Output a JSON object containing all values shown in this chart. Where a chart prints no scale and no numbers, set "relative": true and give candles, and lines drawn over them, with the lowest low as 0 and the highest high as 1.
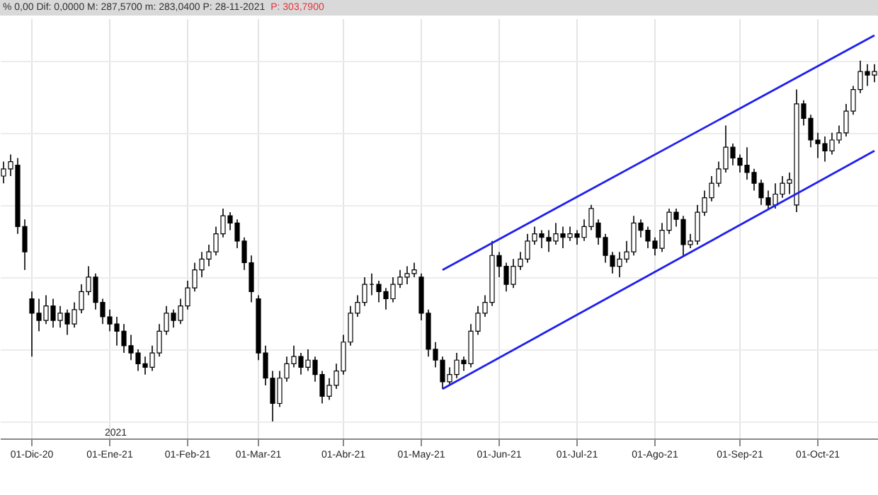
{
  "chart_data": {
    "type": "candlestick",
    "relative": true,
    "grid": true,
    "annotations": [
      "% 0,00 Dif: 0,0000 M: 287,5700 m: 283,0400 P: 28-11-2021",
      "P: 303,7900",
      "2021"
    ],
    "categories": [
      null,
      null,
      null,
      null,
      "01-Dic-20",
      null,
      null,
      null,
      null,
      null,
      null,
      null,
      null,
      null,
      null,
      "01-Ene-21",
      null,
      null,
      null,
      null,
      null,
      null,
      null,
      null,
      null,
      null,
      "01-Feb-21",
      null,
      null,
      null,
      null,
      null,
      null,
      null,
      null,
      null,
      "01-Mar-21",
      null,
      null,
      null,
      null,
      null,
      null,
      null,
      null,
      null,
      null,
      null,
      "01-Abr-21",
      null,
      null,
      null,
      null,
      null,
      null,
      null,
      null,
      null,
      null,
      "01-May-21",
      null,
      null,
      null,
      null,
      null,
      null,
      null,
      null,
      null,
      null,
      "01-Jun-21",
      null,
      null,
      null,
      null,
      null,
      null,
      null,
      null,
      null,
      null,
      "01-Jul-21",
      null,
      null,
      null,
      null,
      null,
      null,
      null,
      null,
      null,
      null,
      "01-Ago-21",
      null,
      null,
      null,
      null,
      null,
      null,
      null,
      null,
      null,
      null,
      null,
      "01-Sep-21",
      null,
      null,
      null,
      null,
      null,
      null,
      null,
      null,
      null,
      null,
      "01-Oct-21",
      null,
      null,
      null,
      null,
      null,
      null,
      null,
      null
    ],
    "ohlc": [
      [
        0.68,
        0.72,
        0.66,
        0.7
      ],
      [
        0.7,
        0.74,
        0.68,
        0.72
      ],
      [
        0.71,
        0.73,
        0.52,
        0.54
      ],
      [
        0.54,
        0.56,
        0.42,
        0.47
      ],
      [
        0.34,
        0.36,
        0.18,
        0.3
      ],
      [
        0.3,
        0.34,
        0.25,
        0.28
      ],
      [
        0.28,
        0.35,
        0.27,
        0.32
      ],
      [
        0.32,
        0.34,
        0.26,
        0.28
      ],
      [
        0.28,
        0.32,
        0.26,
        0.3
      ],
      [
        0.3,
        0.31,
        0.24,
        0.27
      ],
      [
        0.27,
        0.33,
        0.26,
        0.31
      ],
      [
        0.31,
        0.38,
        0.3,
        0.36
      ],
      [
        0.36,
        0.43,
        0.35,
        0.4
      ],
      [
        0.4,
        0.41,
        0.31,
        0.33
      ],
      [
        0.33,
        0.34,
        0.27,
        0.29
      ],
      [
        0.29,
        0.31,
        0.25,
        0.27
      ],
      [
        0.27,
        0.29,
        0.21,
        0.25
      ],
      [
        0.25,
        0.27,
        0.19,
        0.21
      ],
      [
        0.21,
        0.24,
        0.17,
        0.19
      ],
      [
        0.19,
        0.2,
        0.14,
        0.16
      ],
      [
        0.16,
        0.18,
        0.13,
        0.15
      ],
      [
        0.15,
        0.21,
        0.14,
        0.19
      ],
      [
        0.19,
        0.27,
        0.18,
        0.25
      ],
      [
        0.25,
        0.32,
        0.24,
        0.3
      ],
      [
        0.3,
        0.31,
        0.26,
        0.28
      ],
      [
        0.28,
        0.34,
        0.27,
        0.32
      ],
      [
        0.32,
        0.39,
        0.31,
        0.37
      ],
      [
        0.37,
        0.44,
        0.36,
        0.42
      ],
      [
        0.42,
        0.47,
        0.4,
        0.45
      ],
      [
        0.45,
        0.49,
        0.43,
        0.47
      ],
      [
        0.47,
        0.54,
        0.46,
        0.52
      ],
      [
        0.52,
        0.59,
        0.51,
        0.57
      ],
      [
        0.57,
        0.58,
        0.53,
        0.55
      ],
      [
        0.55,
        0.56,
        0.48,
        0.5
      ],
      [
        0.5,
        0.51,
        0.42,
        0.44
      ],
      [
        0.44,
        0.46,
        0.33,
        0.36
      ],
      [
        0.34,
        0.35,
        0.17,
        0.19
      ],
      [
        0.19,
        0.21,
        0.1,
        0.12
      ],
      [
        0.12,
        0.14,
        0.0,
        0.05
      ],
      [
        0.05,
        0.14,
        0.04,
        0.12
      ],
      [
        0.12,
        0.18,
        0.11,
        0.16
      ],
      [
        0.16,
        0.21,
        0.15,
        0.18
      ],
      [
        0.18,
        0.19,
        0.13,
        0.15
      ],
      [
        0.15,
        0.2,
        0.14,
        0.17
      ],
      [
        0.17,
        0.18,
        0.11,
        0.13
      ],
      [
        0.13,
        0.14,
        0.05,
        0.07
      ],
      [
        0.07,
        0.12,
        0.06,
        0.1
      ],
      [
        0.1,
        0.16,
        0.09,
        0.14
      ],
      [
        0.14,
        0.24,
        0.13,
        0.22
      ],
      [
        0.22,
        0.32,
        0.21,
        0.3
      ],
      [
        0.3,
        0.35,
        0.29,
        0.33
      ],
      [
        0.33,
        0.4,
        0.32,
        0.38
      ],
      [
        0.38,
        0.41,
        0.35,
        0.38
      ],
      [
        0.38,
        0.39,
        0.33,
        0.36
      ],
      [
        0.36,
        0.37,
        0.31,
        0.34
      ],
      [
        0.34,
        0.4,
        0.33,
        0.38
      ],
      [
        0.38,
        0.42,
        0.37,
        0.4
      ],
      [
        0.4,
        0.43,
        0.38,
        0.41
      ],
      [
        0.41,
        0.44,
        0.4,
        0.42
      ],
      [
        0.4,
        0.41,
        0.28,
        0.3
      ],
      [
        0.3,
        0.31,
        0.18,
        0.2
      ],
      [
        0.2,
        0.22,
        0.15,
        0.17
      ],
      [
        0.17,
        0.18,
        0.09,
        0.11
      ],
      [
        0.11,
        0.15,
        0.1,
        0.13
      ],
      [
        0.13,
        0.19,
        0.12,
        0.17
      ],
      [
        0.17,
        0.18,
        0.14,
        0.16
      ],
      [
        0.16,
        0.27,
        0.15,
        0.25
      ],
      [
        0.25,
        0.32,
        0.24,
        0.3
      ],
      [
        0.3,
        0.35,
        0.29,
        0.33
      ],
      [
        0.33,
        0.5,
        0.32,
        0.46
      ],
      [
        0.46,
        0.47,
        0.4,
        0.43
      ],
      [
        0.43,
        0.44,
        0.36,
        0.38
      ],
      [
        0.38,
        0.45,
        0.37,
        0.43
      ],
      [
        0.43,
        0.47,
        0.42,
        0.45
      ],
      [
        0.45,
        0.52,
        0.44,
        0.5
      ],
      [
        0.5,
        0.54,
        0.49,
        0.52
      ],
      [
        0.52,
        0.53,
        0.48,
        0.51
      ],
      [
        0.51,
        0.53,
        0.47,
        0.5
      ],
      [
        0.5,
        0.55,
        0.49,
        0.52
      ],
      [
        0.52,
        0.54,
        0.48,
        0.51
      ],
      [
        0.51,
        0.54,
        0.5,
        0.52
      ],
      [
        0.52,
        0.53,
        0.49,
        0.51
      ],
      [
        0.51,
        0.56,
        0.5,
        0.54
      ],
      [
        0.54,
        0.6,
        0.53,
        0.59
      ],
      [
        0.55,
        0.56,
        0.49,
        0.51
      ],
      [
        0.51,
        0.52,
        0.44,
        0.46
      ],
      [
        0.46,
        0.47,
        0.41,
        0.43
      ],
      [
        0.43,
        0.47,
        0.4,
        0.45
      ],
      [
        0.45,
        0.5,
        0.44,
        0.47
      ],
      [
        0.47,
        0.57,
        0.46,
        0.55
      ],
      [
        0.55,
        0.56,
        0.51,
        0.53
      ],
      [
        0.53,
        0.54,
        0.48,
        0.5
      ],
      [
        0.5,
        0.51,
        0.46,
        0.48
      ],
      [
        0.48,
        0.55,
        0.47,
        0.53
      ],
      [
        0.53,
        0.59,
        0.52,
        0.58
      ],
      [
        0.58,
        0.59,
        0.54,
        0.56
      ],
      [
        0.56,
        0.57,
        0.46,
        0.49
      ],
      [
        0.49,
        0.52,
        0.48,
        0.5
      ],
      [
        0.5,
        0.6,
        0.49,
        0.58
      ],
      [
        0.58,
        0.64,
        0.57,
        0.62
      ],
      [
        0.62,
        0.68,
        0.61,
        0.66
      ],
      [
        0.66,
        0.72,
        0.65,
        0.7
      ],
      [
        0.7,
        0.82,
        0.69,
        0.76
      ],
      [
        0.76,
        0.77,
        0.71,
        0.73
      ],
      [
        0.73,
        0.74,
        0.69,
        0.71
      ],
      [
        0.71,
        0.76,
        0.67,
        0.69
      ],
      [
        0.69,
        0.7,
        0.64,
        0.66
      ],
      [
        0.66,
        0.67,
        0.6,
        0.62
      ],
      [
        0.62,
        0.64,
        0.59,
        0.6
      ],
      [
        0.6,
        0.66,
        0.59,
        0.63
      ],
      [
        0.63,
        0.68,
        0.62,
        0.66
      ],
      [
        0.66,
        0.69,
        0.63,
        0.67
      ],
      [
        0.6,
        0.92,
        0.58,
        0.88
      ],
      [
        0.88,
        0.89,
        0.82,
        0.84
      ],
      [
        0.84,
        0.85,
        0.76,
        0.78
      ],
      [
        0.78,
        0.8,
        0.73,
        0.77
      ],
      [
        0.77,
        0.79,
        0.72,
        0.75
      ],
      [
        0.75,
        0.8,
        0.74,
        0.78
      ],
      [
        0.78,
        0.82,
        0.77,
        0.8
      ],
      [
        0.8,
        0.88,
        0.79,
        0.86
      ],
      [
        0.86,
        0.93,
        0.85,
        0.92
      ],
      [
        0.92,
        1.0,
        0.91,
        0.97
      ],
      [
        0.97,
        0.99,
        0.93,
        0.96
      ],
      [
        0.96,
        0.99,
        0.94,
        0.97
      ]
    ],
    "series": [
      {
        "type": "line",
        "color": "#1f1fef",
        "values": [
          null,
          null,
          null,
          null,
          null,
          null,
          null,
          null,
          null,
          null,
          null,
          null,
          null,
          null,
          null,
          null,
          null,
          null,
          null,
          null,
          null,
          null,
          null,
          null,
          null,
          null,
          null,
          null,
          null,
          null,
          null,
          null,
          null,
          null,
          null,
          null,
          null,
          null,
          null,
          null,
          null,
          null,
          null,
          null,
          null,
          null,
          null,
          null,
          null,
          null,
          null,
          null,
          null,
          null,
          null,
          null,
          null,
          null,
          null,
          null,
          null,
          null,
          0.42,
          null,
          null,
          null,
          null,
          null,
          null,
          null,
          null,
          null,
          null,
          null,
          null,
          null,
          null,
          null,
          null,
          null,
          null,
          null,
          null,
          null,
          null,
          null,
          null,
          null,
          null,
          null,
          null,
          null,
          null,
          null,
          null,
          null,
          null,
          null,
          null,
          null,
          null,
          null,
          null,
          null,
          null,
          null,
          null,
          null,
          null,
          null,
          null,
          null,
          null,
          null,
          null,
          null,
          null,
          null,
          null,
          null,
          null,
          null,
          null,
          1.07
        ]
      },
      {
        "type": "line",
        "color": "#1f1fef",
        "values": [
          null,
          null,
          null,
          null,
          null,
          null,
          null,
          null,
          null,
          null,
          null,
          null,
          null,
          null,
          null,
          null,
          null,
          null,
          null,
          null,
          null,
          null,
          null,
          null,
          null,
          null,
          null,
          null,
          null,
          null,
          null,
          null,
          null,
          null,
          null,
          null,
          null,
          null,
          null,
          null,
          null,
          null,
          null,
          null,
          null,
          null,
          null,
          null,
          null,
          null,
          null,
          null,
          null,
          null,
          null,
          null,
          null,
          null,
          null,
          null,
          null,
          null,
          0.09,
          null,
          null,
          null,
          null,
          null,
          null,
          null,
          null,
          null,
          null,
          null,
          null,
          null,
          null,
          null,
          null,
          null,
          null,
          null,
          null,
          null,
          null,
          null,
          null,
          null,
          null,
          null,
          null,
          null,
          null,
          null,
          null,
          null,
          null,
          null,
          null,
          null,
          null,
          null,
          null,
          null,
          null,
          null,
          null,
          null,
          null,
          null,
          null,
          null,
          null,
          null,
          null,
          null,
          null,
          null,
          null,
          null,
          null,
          null,
          null,
          0.75
        ]
      }
    ]
  }
}
